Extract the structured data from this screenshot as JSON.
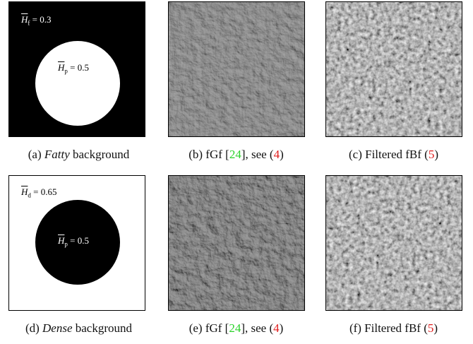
{
  "panels": [
    {
      "caption": [
        "(a) ",
        "Fatty",
        " background"
      ],
      "labels": [
        {
          "symbol": "H",
          "subscript": "f",
          "relation": "=",
          "value": "0.3"
        },
        {
          "symbol": "H",
          "subscript": "p",
          "relation": "=",
          "value": "0.5"
        }
      ]
    },
    {
      "caption": [
        "(b) fGf [",
        "24",
        "], see (",
        "4",
        ")"
      ]
    },
    {
      "caption": [
        "(c) Filtered fBf (",
        "5",
        ")"
      ]
    },
    {
      "caption": [
        "(d) ",
        "Dense",
        " background"
      ],
      "labels": [
        {
          "symbol": "H",
          "subscript": "d",
          "relation": "=",
          "value": "0.65"
        },
        {
          "symbol": "H",
          "subscript": "p",
          "relation": "=",
          "value": "0.5"
        }
      ]
    },
    {
      "caption": [
        "(e) fGf [",
        "24",
        "], see (",
        "4",
        ")"
      ]
    },
    {
      "caption": [
        "(f) Filtered fBf (",
        "5",
        ")"
      ]
    }
  ]
}
